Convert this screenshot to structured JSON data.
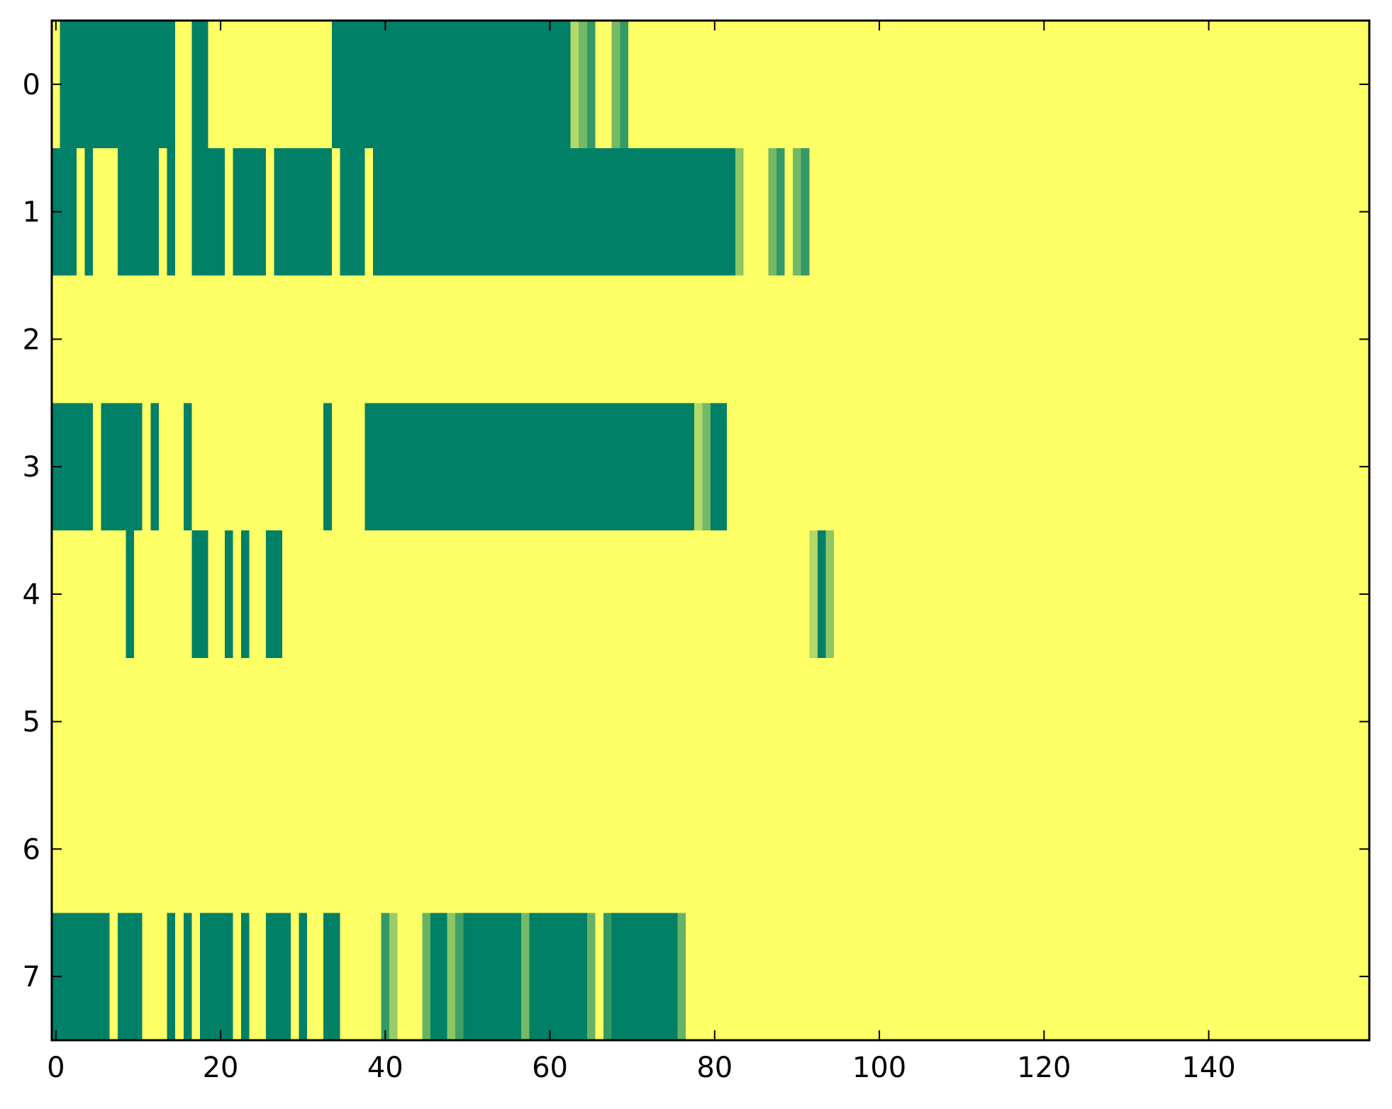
{
  "chart_data": {
    "type": "heatmap",
    "title": "",
    "xlabel": "",
    "ylabel": "",
    "xlim": [
      -0.5,
      159.5
    ],
    "ylim": [
      7.5,
      -0.5
    ],
    "x_ticks": [
      0,
      20,
      40,
      60,
      80,
      100,
      120,
      140
    ],
    "x_tick_labels": [
      "0",
      "20",
      "40",
      "60",
      "80",
      "100",
      "120",
      "140"
    ],
    "y_ticks": [
      0,
      1,
      2,
      3,
      4,
      5,
      6,
      7
    ],
    "y_tick_labels": [
      "0",
      "1",
      "2",
      "3",
      "4",
      "5",
      "6",
      "7"
    ],
    "grid": false,
    "legend": "none",
    "colormap": "summer_r",
    "colors": {
      "low": "#ffff66",
      "high": "#008066",
      "background": "#ffff66"
    },
    "value_range": [
      0,
      1
    ],
    "default_value": 0,
    "rows": [
      {
        "row": 0,
        "segments": [
          [
            1,
            14,
            1
          ],
          [
            17,
            18,
            1
          ],
          [
            34,
            62,
            1
          ],
          [
            63,
            63,
            0.3
          ],
          [
            64,
            64,
            0.55
          ],
          [
            65,
            65,
            0.8
          ],
          [
            68,
            68,
            0.55
          ],
          [
            69,
            69,
            0.8
          ]
        ]
      },
      {
        "row": 1,
        "segments": [
          [
            0,
            2,
            1
          ],
          [
            4,
            4,
            1
          ],
          [
            8,
            12,
            1
          ],
          [
            14,
            14,
            1
          ],
          [
            17,
            20,
            1
          ],
          [
            22,
            25,
            1
          ],
          [
            27,
            33,
            1
          ],
          [
            35,
            37,
            1
          ],
          [
            39,
            82,
            1
          ],
          [
            83,
            83,
            0.45
          ],
          [
            87,
            87,
            0.55
          ],
          [
            88,
            88,
            0.8
          ],
          [
            90,
            90,
            0.55
          ],
          [
            91,
            91,
            0.8
          ]
        ]
      },
      {
        "row": 3,
        "segments": [
          [
            0,
            4,
            1
          ],
          [
            6,
            10,
            1
          ],
          [
            12,
            12,
            1
          ],
          [
            16,
            16,
            1
          ],
          [
            33,
            33,
            1
          ],
          [
            38,
            77,
            1
          ],
          [
            78,
            78,
            0.3
          ],
          [
            79,
            79,
            0.55
          ],
          [
            80,
            81,
            1
          ]
        ]
      },
      {
        "row": 4,
        "segments": [
          [
            9,
            9,
            1
          ],
          [
            17,
            18,
            1
          ],
          [
            21,
            21,
            1
          ],
          [
            23,
            23,
            1
          ],
          [
            26,
            27,
            1
          ],
          [
            92,
            92,
            0.3
          ],
          [
            93,
            93,
            1
          ],
          [
            94,
            94,
            0.45
          ]
        ]
      },
      {
        "row": 7,
        "segments": [
          [
            0,
            6,
            1
          ],
          [
            8,
            10,
            1
          ],
          [
            14,
            14,
            1
          ],
          [
            16,
            16,
            1
          ],
          [
            18,
            21,
            1
          ],
          [
            23,
            23,
            1
          ],
          [
            26,
            28,
            1
          ],
          [
            30,
            30,
            1
          ],
          [
            33,
            34,
            1
          ],
          [
            40,
            40,
            0.8
          ],
          [
            41,
            41,
            0.4
          ],
          [
            45,
            45,
            0.6
          ],
          [
            46,
            47,
            1
          ],
          [
            48,
            48,
            0.45
          ],
          [
            49,
            49,
            0.75
          ],
          [
            50,
            56,
            1
          ],
          [
            57,
            57,
            0.55
          ],
          [
            58,
            64,
            1
          ],
          [
            65,
            65,
            0.6
          ],
          [
            67,
            67,
            0.8
          ],
          [
            68,
            75,
            1
          ],
          [
            76,
            76,
            0.6
          ]
        ]
      }
    ]
  }
}
